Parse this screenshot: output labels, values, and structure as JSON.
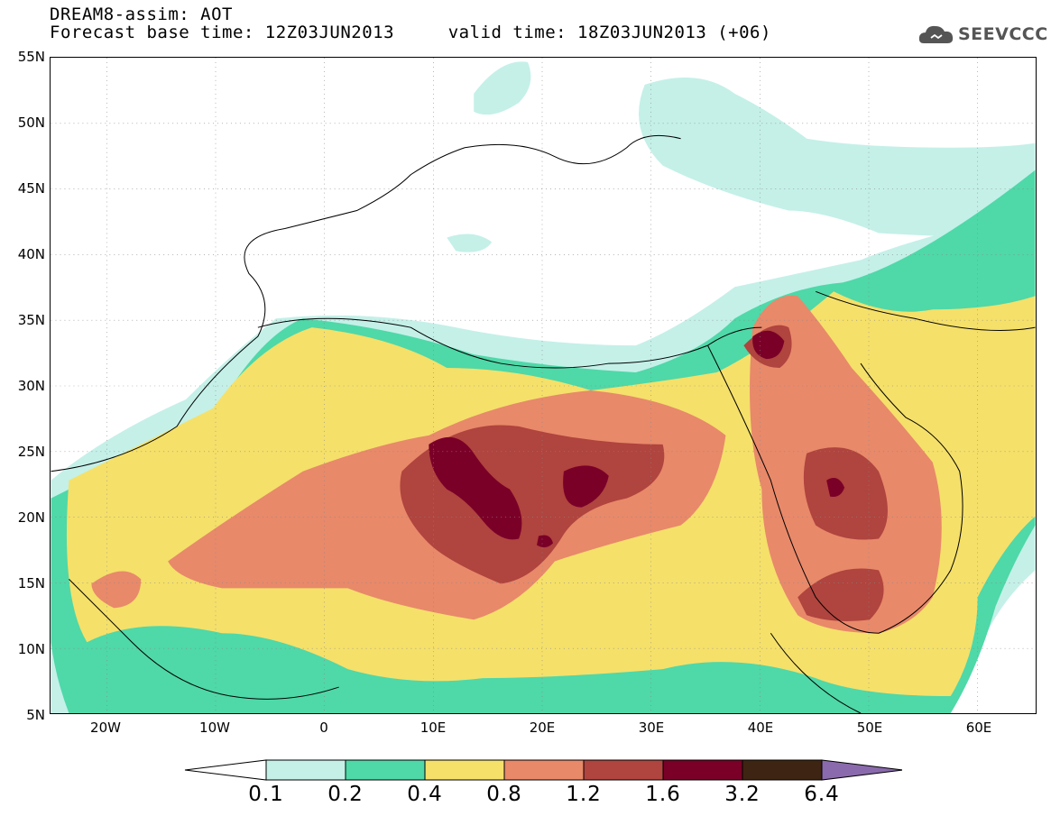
{
  "header": {
    "title_line1": "DREAM8-assim: AOT",
    "title_line2": "Forecast base time: 12Z03JUN2013     valid time: 18Z03JUN2013 (+06)",
    "logo_text": "SEEVCCC"
  },
  "map": {
    "lat_labels": [
      "55N",
      "50N",
      "45N",
      "40N",
      "35N",
      "30N",
      "25N",
      "20N",
      "15N",
      "10N",
      "5N"
    ],
    "lon_labels": [
      "20W",
      "10W",
      "0",
      "10E",
      "20E",
      "30E",
      "40E",
      "50E",
      "60E"
    ]
  },
  "colorbar": {
    "thresholds": [
      "0.1",
      "0.2",
      "0.4",
      "0.8",
      "1.2",
      "1.6",
      "3.2",
      "6.4"
    ],
    "colors": [
      "#ffffff",
      "#c4f0e8",
      "#4fd8a8",
      "#f5e06a",
      "#e8896a",
      "#b0443e",
      "#7a0028",
      "#3e2412",
      "#8a6aac"
    ]
  }
}
